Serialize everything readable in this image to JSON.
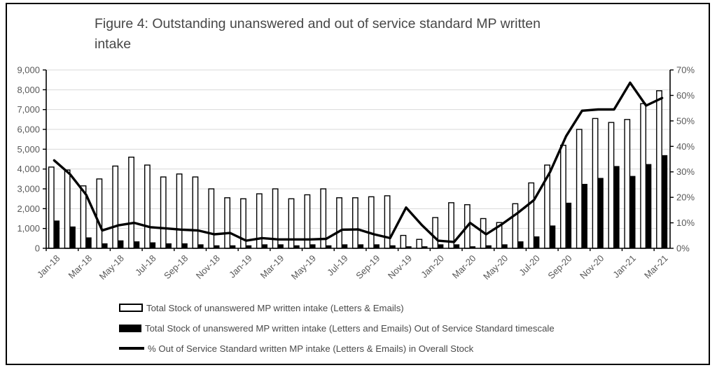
{
  "figure": {
    "title_lines": [
      "Figure 4: Outstanding unanswered and out of service standard MP written",
      "intake"
    ]
  },
  "colors": {
    "gridline": "#d9d9d9",
    "axis": "#000000",
    "bar_total_fill": "#ffffff",
    "bar_total_stroke": "#000000",
    "bar_oss_fill": "#000000",
    "line": "#000000",
    "tick_label": "#595959",
    "title_text": "#474747"
  },
  "chart_data": {
    "type": "bar+line",
    "title": "Figure 4: Outstanding unanswered and out of service standard MP written intake",
    "grid": true,
    "legend_position": "bottom",
    "categories": [
      "Jan-18",
      "Feb-18",
      "Mar-18",
      "Apr-18",
      "May-18",
      "Jun-18",
      "Jul-18",
      "Aug-18",
      "Sep-18",
      "Oct-18",
      "Nov-18",
      "Dec-18",
      "Jan-19",
      "Feb-19",
      "Mar-19",
      "Apr-19",
      "May-19",
      "Jun-19",
      "Jul-19",
      "Aug-19",
      "Sep-19",
      "Oct-19",
      "Nov-19",
      "Dec-19",
      "Jan-20",
      "Feb-20",
      "Mar-20",
      "Apr-20",
      "May-20",
      "Jun-20",
      "Jul-20",
      "Aug-20",
      "Sep-20",
      "Oct-20",
      "Nov-20",
      "Dec-20",
      "Jan-21",
      "Feb-21",
      "Mar-21"
    ],
    "x_label_every": 2,
    "series": [
      {
        "name": "Total Stock of unanswered MP written intake (Letters & Emails)",
        "type": "bar",
        "style": "white",
        "axis": "left",
        "values": [
          4100,
          3950,
          3150,
          3500,
          4150,
          4600,
          4200,
          3600,
          3750,
          3600,
          3000,
          2550,
          2500,
          2750,
          3000,
          2500,
          2700,
          3000,
          2550,
          2550,
          2600,
          2650,
          650,
          450,
          1550,
          2300,
          2200,
          1500,
          1300,
          2250,
          3300,
          4200,
          5200,
          6000,
          6550,
          6350,
          6500,
          7300,
          7950
        ]
      },
      {
        "name": "Total Stock of unanswered MP written intake (Letters and Emails) Out of Service Standard timescale",
        "type": "bar",
        "style": "black",
        "axis": "left",
        "values": [
          1400,
          1100,
          550,
          250,
          400,
          350,
          300,
          250,
          250,
          200,
          150,
          150,
          150,
          200,
          200,
          150,
          200,
          150,
          200,
          200,
          200,
          150,
          100,
          100,
          200,
          200,
          100,
          150,
          200,
          350,
          600,
          1150,
          2300,
          3250,
          3550,
          4150,
          3650,
          4250,
          4700
        ]
      },
      {
        "name": "% Out of Service Standard written MP intake (Letters & Emails) in Overall Stock",
        "type": "line",
        "axis": "right",
        "values": [
          34.5,
          29,
          21,
          7,
          9,
          10,
          8.3,
          7.8,
          7.3,
          7,
          5.5,
          6,
          3,
          4,
          3.5,
          3.5,
          3.5,
          3.7,
          7.3,
          7.4,
          5.5,
          4,
          16,
          9,
          3,
          2.5,
          10,
          5.5,
          9.5,
          14,
          19,
          30,
          44,
          54,
          54.5,
          54.5,
          65,
          56,
          59
        ]
      }
    ],
    "left_axis": {
      "min": 0,
      "max": 9000,
      "step": 1000,
      "tick_labels": [
        "0",
        "1,000",
        "2,000",
        "3,000",
        "4,000",
        "5,000",
        "6,000",
        "7,000",
        "8,000",
        "9,000"
      ]
    },
    "right_axis": {
      "min": 0,
      "max": 70,
      "step": 10,
      "tick_labels": [
        "0%",
        "10%",
        "20%",
        "30%",
        "40%",
        "50%",
        "60%",
        "70%"
      ]
    }
  }
}
